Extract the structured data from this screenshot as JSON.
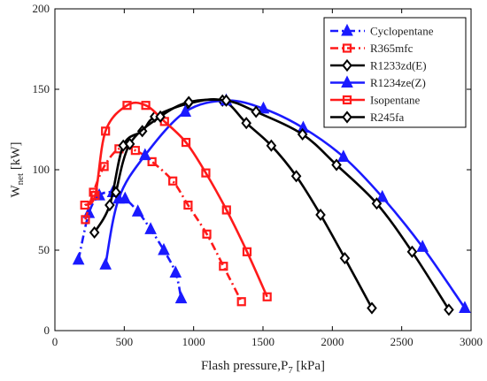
{
  "chart_data": {
    "type": "line",
    "title": "",
    "xlabel": "Flash pressure,P",
    "xlabel_sub": "7",
    "xlabel_unit": " [kPa]",
    "ylabel": "W",
    "ylabel_sub": "net",
    "ylabel_unit": " [kW]",
    "xlim": [
      0,
      3000
    ],
    "ylim": [
      0,
      200
    ],
    "xticks": [
      0,
      500,
      1000,
      1500,
      2000,
      2500,
      3000
    ],
    "yticks": [
      0,
      50,
      100,
      150,
      200
    ],
    "grid": false,
    "legend_position": "top-right",
    "series": [
      {
        "name": "Cyclopentane",
        "color": "#1a1aff",
        "dash": "dashdot",
        "marker": "triangle",
        "points": [
          [
            170,
            44
          ],
          [
            245,
            73
          ],
          [
            320,
            84
          ],
          [
            418,
            86
          ],
          [
            506,
            82
          ],
          [
            598,
            74
          ],
          [
            690,
            63
          ],
          [
            785,
            50
          ],
          [
            870,
            36
          ],
          [
            910,
            20
          ]
        ]
      },
      {
        "name": "R365mfc",
        "color": "#ff1a1a",
        "dash": "dashdot",
        "marker": "square",
        "points": [
          [
            220,
            69
          ],
          [
            278,
            86
          ],
          [
            355,
            102
          ],
          [
            462,
            113
          ],
          [
            580,
            112
          ],
          [
            700,
            105
          ],
          [
            850,
            93
          ],
          [
            960,
            78
          ],
          [
            1095,
            60
          ],
          [
            1215,
            40
          ],
          [
            1345,
            18
          ]
        ]
      },
      {
        "name": "R1233zd(E)",
        "color": "#000000",
        "dash": "solid",
        "marker": "diamond",
        "points": [
          [
            285,
            61
          ],
          [
            395,
            78
          ],
          [
            493,
            115
          ],
          [
            630,
            124
          ],
          [
            720,
            133
          ],
          [
            958,
            141
          ],
          [
            1208,
            143
          ],
          [
            1380,
            129
          ],
          [
            1560,
            115
          ],
          [
            1740,
            96
          ],
          [
            1915,
            72
          ],
          [
            2090,
            45
          ],
          [
            2285,
            14
          ]
        ]
      },
      {
        "name": "R1234ze(Z)",
        "color": "#1a1aff",
        "dash": "solid",
        "marker": "triangle",
        "points": [
          [
            365,
            41
          ],
          [
            460,
            82
          ],
          [
            650,
            109
          ],
          [
            940,
            136
          ],
          [
            1235,
            143
          ],
          [
            1503,
            138
          ],
          [
            1790,
            126
          ],
          [
            2080,
            108
          ],
          [
            2360,
            83
          ],
          [
            2650,
            52
          ],
          [
            2955,
            14
          ]
        ]
      },
      {
        "name": "Isopentane",
        "color": "#ff1a1a",
        "dash": "solid",
        "marker": "square",
        "points": [
          [
            215,
            78
          ],
          [
            290,
            84
          ],
          [
            365,
            124
          ],
          [
            520,
            140
          ],
          [
            655,
            140
          ],
          [
            790,
            130
          ],
          [
            945,
            117
          ],
          [
            1088,
            98
          ],
          [
            1237,
            75
          ],
          [
            1385,
            49
          ],
          [
            1530,
            21
          ]
        ]
      },
      {
        "name": "R245fa",
        "color": "#000000",
        "dash": "solid",
        "marker": "diamond",
        "points": [
          [
            440,
            86
          ],
          [
            540,
            116
          ],
          [
            760,
            133
          ],
          [
            965,
            142
          ],
          [
            1235,
            143
          ],
          [
            1450,
            136
          ],
          [
            1785,
            122
          ],
          [
            2030,
            103
          ],
          [
            2320,
            79
          ],
          [
            2575,
            49
          ],
          [
            2840,
            13
          ]
        ]
      }
    ]
  }
}
